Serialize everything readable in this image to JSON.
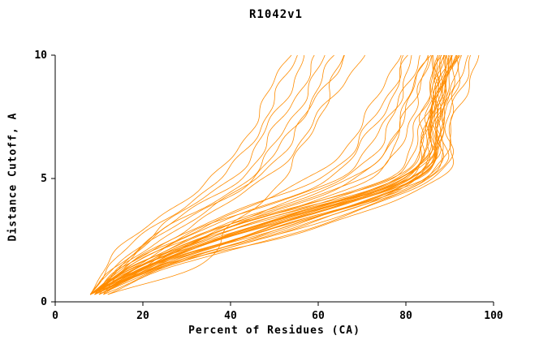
{
  "window": {
    "title": "R1042v1"
  },
  "chart_data": {
    "type": "line",
    "title": "R1042v1",
    "xlabel": "Percent of Residues (CA)",
    "ylabel": "Distance Cutoff, A",
    "xlim": [
      0,
      100
    ],
    "ylim": [
      0,
      10
    ],
    "xticks": [
      0,
      20,
      40,
      60,
      80,
      100
    ],
    "yticks": [
      0,
      5,
      10
    ],
    "grid": false,
    "legend": "none",
    "line_color": "#ff8c00",
    "axis_color": "#000000",
    "background": "#ffffff",
    "description": "Per-model distance cutoff vs percent of CA residues curves (one orange curve per model)",
    "curve_y_levels": [
      0.3,
      1.5,
      3,
      5,
      7.5,
      10
    ],
    "curves": [
      [
        8,
        20,
        42,
        80,
        86,
        89
      ],
      [
        8,
        22,
        45,
        82,
        87,
        90
      ],
      [
        9,
        24,
        48,
        81,
        86,
        88
      ],
      [
        8,
        19,
        40,
        78,
        85,
        88
      ],
      [
        9,
        23,
        50,
        83,
        88,
        91
      ],
      [
        8,
        21,
        44,
        79,
        85,
        89
      ],
      [
        10,
        25,
        52,
        84,
        88,
        92
      ],
      [
        8,
        18,
        38,
        76,
        84,
        87
      ],
      [
        9,
        22,
        47,
        82,
        87,
        90
      ],
      [
        8,
        20,
        43,
        80,
        86,
        90
      ],
      [
        9,
        26,
        55,
        85,
        89,
        93
      ],
      [
        8,
        21,
        46,
        81,
        86,
        89
      ],
      [
        10,
        24,
        50,
        83,
        87,
        91
      ],
      [
        8,
        19,
        41,
        77,
        84,
        88
      ],
      [
        9,
        23,
        49,
        82,
        87,
        90
      ],
      [
        8,
        22,
        45,
        80,
        85,
        88
      ],
      [
        11,
        27,
        56,
        85,
        90,
        94
      ],
      [
        8,
        20,
        44,
        79,
        86,
        89
      ],
      [
        9,
        25,
        53,
        84,
        88,
        92
      ],
      [
        8,
        21,
        42,
        78,
        85,
        88
      ],
      [
        10,
        26,
        54,
        83,
        88,
        91
      ],
      [
        8,
        23,
        48,
        81,
        87,
        90
      ],
      [
        9,
        20,
        40,
        75,
        83,
        87
      ],
      [
        8,
        24,
        51,
        82,
        87,
        91
      ],
      [
        9,
        22,
        46,
        80,
        86,
        89
      ],
      [
        12,
        28,
        58,
        86,
        90,
        95
      ],
      [
        8,
        21,
        45,
        79,
        85,
        88
      ],
      [
        9,
        24,
        52,
        83,
        88,
        92
      ],
      [
        8,
        18,
        36,
        68,
        79,
        84
      ],
      [
        9,
        20,
        38,
        70,
        80,
        85
      ],
      [
        8,
        17,
        34,
        64,
        76,
        82
      ],
      [
        10,
        22,
        40,
        72,
        81,
        86
      ],
      [
        8,
        19,
        37,
        66,
        77,
        83
      ],
      [
        9,
        16,
        32,
        60,
        73,
        80
      ],
      [
        8,
        18,
        35,
        62,
        74,
        81
      ],
      [
        11,
        21,
        39,
        69,
        79,
        85
      ],
      [
        8,
        17,
        33,
        58,
        71,
        78
      ],
      [
        8,
        14,
        24,
        40,
        50,
        57
      ],
      [
        9,
        15,
        26,
        44,
        54,
        62
      ],
      [
        8,
        13,
        22,
        38,
        48,
        55
      ],
      [
        10,
        16,
        28,
        46,
        57,
        66
      ],
      [
        8,
        14,
        25,
        42,
        52,
        60
      ],
      [
        9,
        15,
        27,
        45,
        56,
        64
      ],
      [
        8,
        12,
        20,
        36,
        46,
        53
      ],
      [
        11,
        17,
        30,
        48,
        60,
        70
      ],
      [
        9,
        25,
        60,
        87,
        91,
        97
      ],
      [
        12,
        33,
        40,
        52,
        60,
        66
      ]
    ]
  }
}
